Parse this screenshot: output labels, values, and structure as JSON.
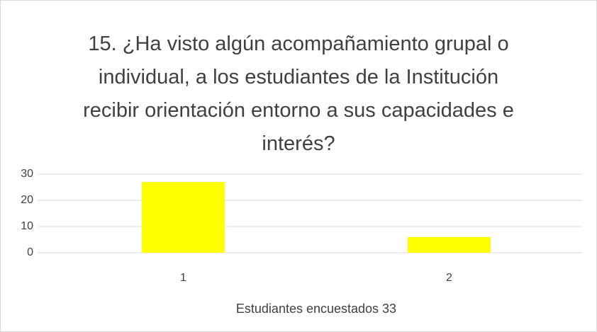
{
  "chart_data": {
    "type": "bar",
    "title": "15. ¿Ha visto algún acompañamiento grupal o individual, a los estudiantes de la Institución recibir orientación entorno a sus capacidades e interés?",
    "x_label": "Estudiantes encuestados 33",
    "categories": [
      "1",
      "2"
    ],
    "values": [
      27,
      6
    ],
    "color": "#ffff00",
    "ylim": [
      0,
      30
    ],
    "yticks": [
      0,
      10,
      20,
      30
    ],
    "grid": true
  }
}
